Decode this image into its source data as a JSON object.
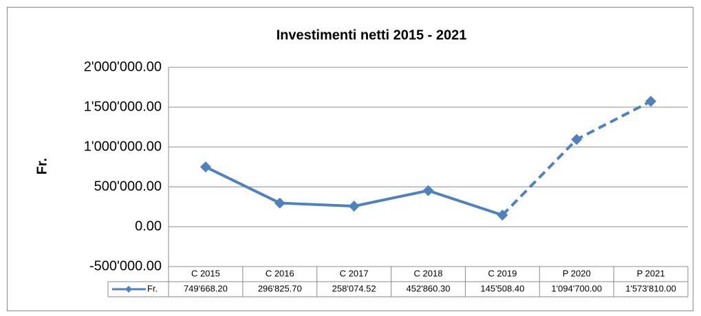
{
  "chart_data": {
    "type": "line",
    "title": "Investimenti netti 2015 - 2021",
    "y_label": "Fr.",
    "categories": [
      "C 2015",
      "C 2016",
      "C 2017",
      "C 2018",
      "C 2019",
      "P 2020",
      "P 2021"
    ],
    "series": [
      {
        "name": "Fr.",
        "color": "#4f81bd",
        "values": [
          749668.2,
          296825.7,
          258074.52,
          452860.3,
          145508.4,
          1094700,
          1573810
        ],
        "value_labels": [
          "749'668.20",
          "296'825.70",
          "258'074.52",
          "452'860.30",
          "145'508.40",
          "1'094'700.00",
          "1'573'810.00"
        ],
        "segment_styles": [
          "solid",
          "solid",
          "solid",
          "solid",
          "dashed",
          "dashed"
        ]
      }
    ],
    "ylim": [
      -500000,
      2000000
    ],
    "yticks": [
      {
        "value": -500000,
        "label": "-500'000.00"
      },
      {
        "value": 0,
        "label": "0.00"
      },
      {
        "value": 500000,
        "label": "500'000.00"
      },
      {
        "value": 1000000,
        "label": "1'000'000.00"
      },
      {
        "value": 1500000,
        "label": "1'500'000.00"
      },
      {
        "value": 2000000,
        "label": "2'000'000.00"
      }
    ],
    "grid": true,
    "data_table": true
  }
}
